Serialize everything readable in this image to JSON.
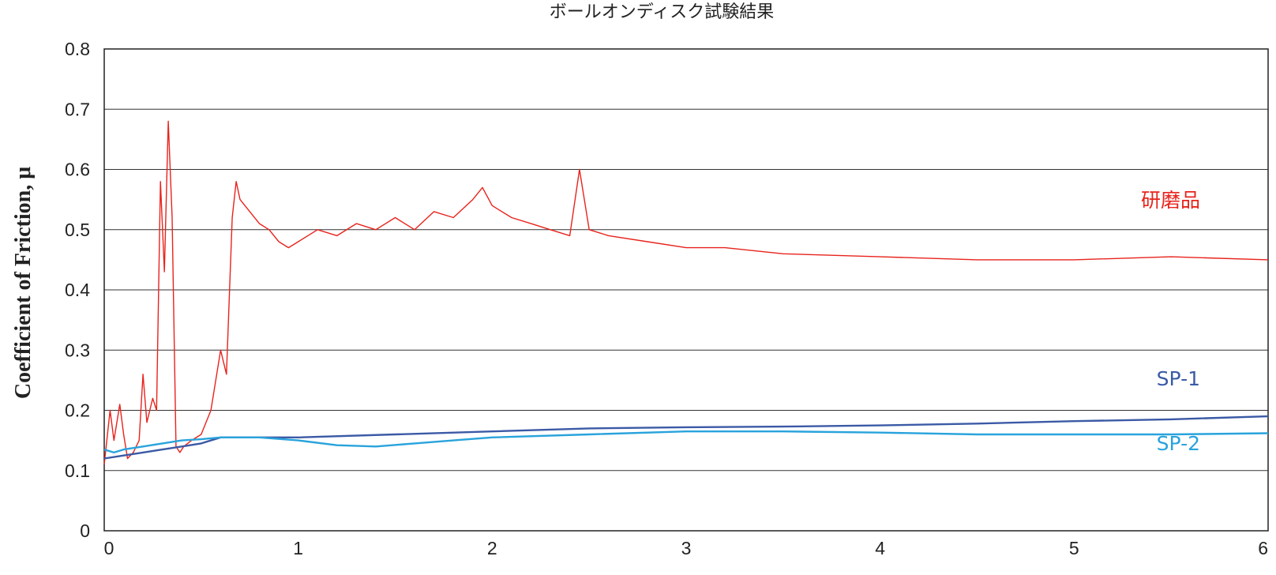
{
  "chart_data": {
    "type": "line",
    "title": "ボールオンディスク試験結果",
    "xlabel": "",
    "ylabel": "Coefficient of Friction, μ",
    "xlim": [
      0,
      6
    ],
    "ylim": [
      0,
      0.8
    ],
    "x_ticks": [
      "0",
      "1",
      "2",
      "3",
      "4",
      "5",
      "6"
    ],
    "y_ticks": [
      "0",
      "0.1",
      "0.2",
      "0.3",
      "0.4",
      "0.5",
      "0.6",
      "0.7",
      "0.8"
    ],
    "grid": "horizontal",
    "legend": "inline labels at right",
    "series": [
      {
        "name": "研磨品",
        "color": "#e8231c",
        "x": [
          0,
          0.03,
          0.05,
          0.08,
          0.1,
          0.12,
          0.15,
          0.18,
          0.2,
          0.22,
          0.25,
          0.27,
          0.29,
          0.31,
          0.33,
          0.35,
          0.37,
          0.39,
          0.41,
          0.45,
          0.5,
          0.55,
          0.6,
          0.63,
          0.66,
          0.68,
          0.7,
          0.75,
          0.8,
          0.85,
          0.9,
          0.95,
          1.0,
          1.1,
          1.2,
          1.3,
          1.4,
          1.5,
          1.6,
          1.7,
          1.8,
          1.9,
          1.95,
          2.0,
          2.1,
          2.2,
          2.3,
          2.4,
          2.45,
          2.5,
          2.6,
          2.8,
          3.0,
          3.2,
          3.5,
          4.0,
          4.5,
          5.0,
          5.5,
          6.0
        ],
        "y": [
          0.11,
          0.2,
          0.15,
          0.21,
          0.16,
          0.12,
          0.13,
          0.15,
          0.26,
          0.18,
          0.22,
          0.2,
          0.58,
          0.43,
          0.68,
          0.52,
          0.14,
          0.13,
          0.14,
          0.15,
          0.16,
          0.2,
          0.3,
          0.26,
          0.52,
          0.58,
          0.55,
          0.53,
          0.51,
          0.5,
          0.48,
          0.47,
          0.48,
          0.5,
          0.49,
          0.51,
          0.5,
          0.52,
          0.5,
          0.53,
          0.52,
          0.55,
          0.57,
          0.54,
          0.52,
          0.51,
          0.5,
          0.49,
          0.6,
          0.5,
          0.49,
          0.48,
          0.47,
          0.47,
          0.46,
          0.455,
          0.45,
          0.45,
          0.455,
          0.45
        ]
      },
      {
        "name": "SP-1",
        "color": "#3b5aa6",
        "x": [
          0,
          0.1,
          0.2,
          0.3,
          0.4,
          0.5,
          0.6,
          0.8,
          1.0,
          1.5,
          2.0,
          2.5,
          3.0,
          3.5,
          4.0,
          4.5,
          5.0,
          5.5,
          6.0
        ],
        "y": [
          0.12,
          0.125,
          0.13,
          0.135,
          0.14,
          0.145,
          0.155,
          0.155,
          0.155,
          0.16,
          0.165,
          0.17,
          0.172,
          0.173,
          0.175,
          0.178,
          0.182,
          0.185,
          0.19
        ]
      },
      {
        "name": "SP-2",
        "color": "#29a3dc",
        "x": [
          0,
          0.05,
          0.1,
          0.2,
          0.3,
          0.4,
          0.5,
          0.6,
          0.8,
          1.0,
          1.2,
          1.4,
          1.6,
          1.8,
          2.0,
          2.5,
          3.0,
          3.5,
          4.0,
          4.5,
          5.0,
          5.5,
          6.0
        ],
        "y": [
          0.135,
          0.13,
          0.135,
          0.14,
          0.145,
          0.15,
          0.152,
          0.155,
          0.155,
          0.15,
          0.142,
          0.14,
          0.145,
          0.15,
          0.155,
          0.16,
          0.165,
          0.165,
          0.163,
          0.16,
          0.16,
          0.16,
          0.162
        ]
      }
    ]
  }
}
